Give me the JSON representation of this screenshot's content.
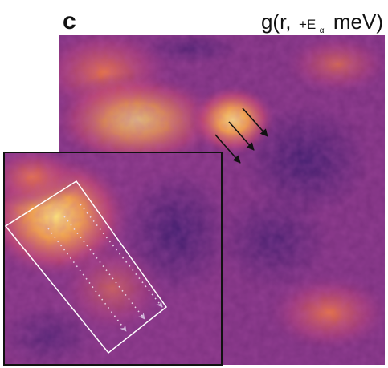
{
  "panel_label": "c",
  "title": {
    "prefix": "g(r,",
    "energy": "+E",
    "subscript": "α'",
    "suffix": "meV)"
  }
}
